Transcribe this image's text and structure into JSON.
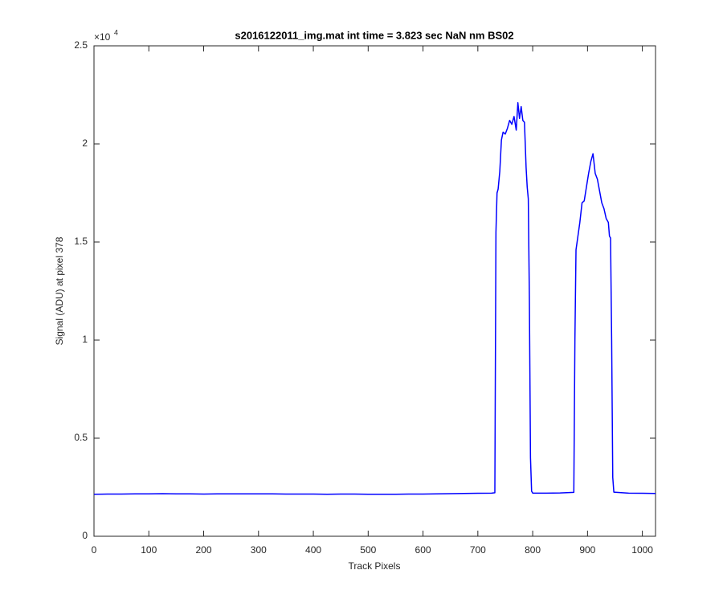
{
  "chart_data": {
    "type": "line",
    "title": "s2016122011_img.mat int time = 3.823 sec  NaN nm BS02",
    "x_label": "Track Pixels",
    "y_label": "Signal (ADU) at pixel 378",
    "y_exponent_base": "×10",
    "y_exponent": "4",
    "color": "#0000ff",
    "xlim": [
      0,
      1024
    ],
    "ylim": [
      0,
      2.5
    ],
    "xticks": [
      0,
      100,
      200,
      300,
      400,
      500,
      600,
      700,
      800,
      900,
      1000
    ],
    "yticks": [
      0,
      0.5,
      1,
      1.5,
      2,
      2.5
    ],
    "grid": false,
    "x": [
      0,
      25,
      50,
      75,
      100,
      125,
      150,
      175,
      200,
      225,
      250,
      275,
      300,
      325,
      350,
      375,
      400,
      425,
      450,
      475,
      500,
      525,
      550,
      575,
      600,
      625,
      650,
      675,
      700,
      725,
      731,
      733,
      735,
      737,
      740,
      743,
      746,
      750,
      754,
      758,
      762,
      766,
      770,
      773,
      776,
      779,
      782,
      785,
      788,
      790,
      792,
      794,
      796,
      798,
      800,
      825,
      850,
      875,
      877,
      879,
      882,
      886,
      890,
      894,
      898,
      902,
      906,
      910,
      914,
      918,
      922,
      926,
      930,
      934,
      938,
      940,
      942,
      944,
      946,
      948,
      975,
      1000,
      1024
    ],
    "values": [
      0.214,
      0.215,
      0.215,
      0.216,
      0.216,
      0.217,
      0.216,
      0.216,
      0.215,
      0.216,
      0.216,
      0.216,
      0.216,
      0.216,
      0.215,
      0.215,
      0.215,
      0.214,
      0.215,
      0.215,
      0.214,
      0.214,
      0.214,
      0.215,
      0.215,
      0.216,
      0.217,
      0.218,
      0.219,
      0.22,
      0.222,
      1.55,
      1.75,
      1.77,
      1.86,
      2.02,
      2.06,
      2.05,
      2.08,
      2.12,
      2.1,
      2.14,
      2.07,
      2.21,
      2.13,
      2.19,
      2.12,
      2.11,
      1.88,
      1.78,
      1.72,
      1.2,
      0.4,
      0.23,
      0.22,
      0.22,
      0.221,
      0.224,
      1.0,
      1.46,
      1.52,
      1.6,
      1.7,
      1.71,
      1.78,
      1.85,
      1.91,
      1.95,
      1.85,
      1.82,
      1.76,
      1.7,
      1.67,
      1.62,
      1.6,
      1.53,
      1.52,
      1.0,
      0.3,
      0.225,
      0.22,
      0.219,
      0.218
    ]
  }
}
